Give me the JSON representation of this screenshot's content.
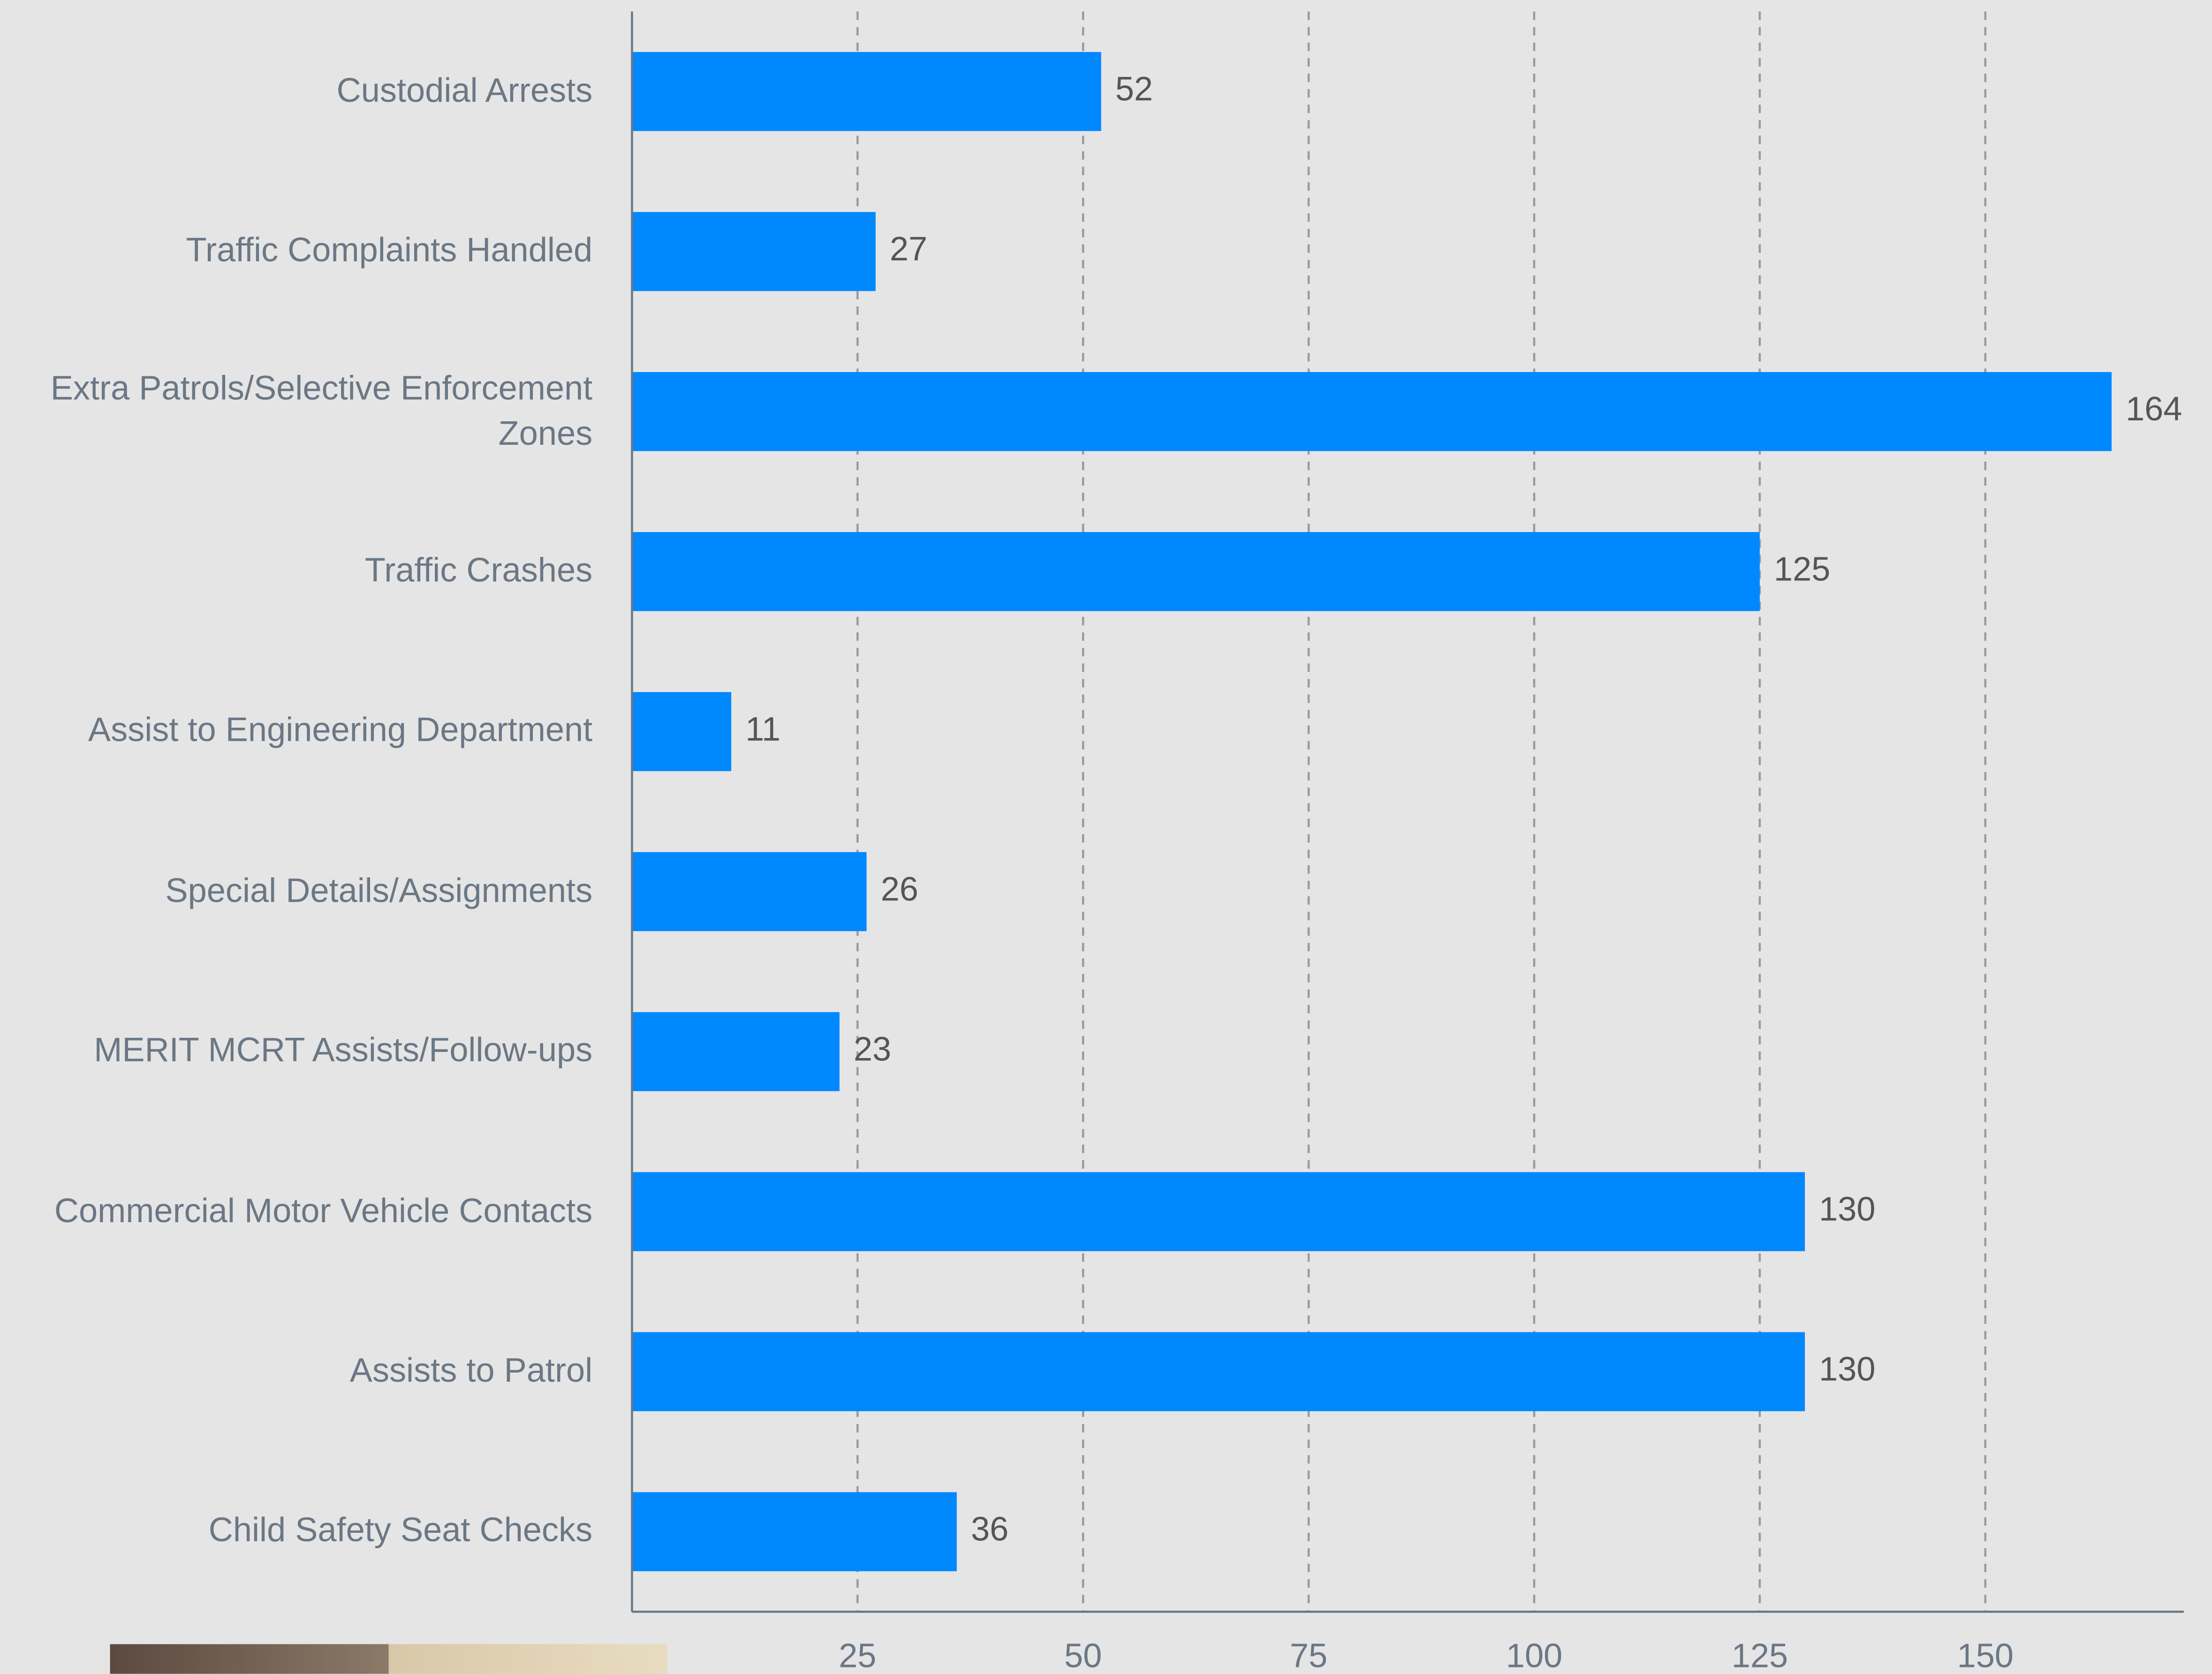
{
  "chart_data": {
    "type": "bar",
    "orientation": "horizontal",
    "categories": [
      "Custodial Arrests",
      "Traffic Complaints Handled",
      "Extra Patrols/Selective Enforcement Zones",
      "Traffic Crashes",
      "Assist to Engineering Department",
      "Special Details/Assignments",
      "MERIT MCRT Assists/Follow-ups",
      "Commercial Motor Vehicle Contacts",
      "Assists to Patrol",
      "Child Safety Seat Checks"
    ],
    "values": [
      52,
      27,
      164,
      125,
      11,
      26,
      23,
      130,
      130,
      36
    ],
    "color": "#0088ff",
    "xlim": [
      0,
      172
    ],
    "xticks": [
      25,
      50,
      75,
      100,
      125,
      150
    ],
    "grid": true
  }
}
